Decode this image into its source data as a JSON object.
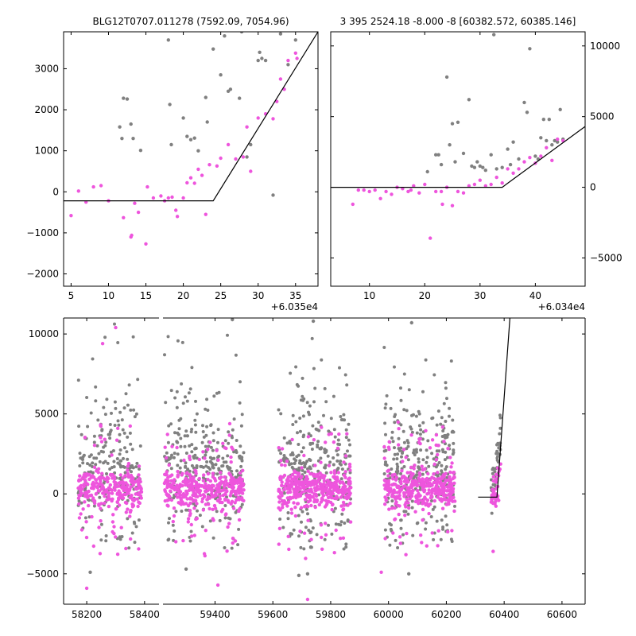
{
  "colors": {
    "gray_points": "#808080",
    "pink_points": "#ee55dd",
    "fit_line": "#000000",
    "background": "#ffffff"
  },
  "chart_data": [
    {
      "type": "scatter",
      "title": "BLG12T0707.011278 (7592.09, 7054.96)",
      "xlabel": "",
      "ylabel": "",
      "x_offset_label": "+6.035e4",
      "xlim": [
        4,
        38
      ],
      "ylim": [
        -2300,
        3900
      ],
      "xticks": [
        5,
        10,
        15,
        20,
        25,
        30,
        35
      ],
      "xtick_labels": [
        "5",
        "10",
        "15",
        "20",
        "25",
        "30",
        "35"
      ],
      "yticks": [
        -2000,
        -1000,
        0,
        1000,
        2000,
        3000
      ],
      "ytick_labels": [
        "−2000",
        "−1000",
        "0",
        "1000",
        "2000",
        "3000"
      ],
      "y_axis_side": "left",
      "grid": false,
      "series": [
        {
          "role": "gray",
          "points": [
            [
              11.5,
              1580
            ],
            [
              11.8,
              1300
            ],
            [
              12,
              2280
            ],
            [
              12.5,
              2260
            ],
            [
              13,
              1650
            ],
            [
              13.3,
              1300
            ],
            [
              14.3,
              1010
            ],
            [
              18,
              3700
            ],
            [
              18.2,
              2130
            ],
            [
              18.4,
              1150
            ],
            [
              20,
              1800
            ],
            [
              20.5,
              1350
            ],
            [
              21,
              1270
            ],
            [
              21.5,
              1310
            ],
            [
              22,
              1000
            ],
            [
              23,
              2300
            ],
            [
              23.2,
              1700
            ],
            [
              24,
              3480
            ],
            [
              25,
              2850
            ],
            [
              25.5,
              3800
            ],
            [
              26,
              2450
            ],
            [
              26.3,
              2500
            ],
            [
              27.5,
              2280
            ],
            [
              27.8,
              3900
            ],
            [
              28.5,
              850
            ],
            [
              29,
              1150
            ],
            [
              30,
              3200
            ],
            [
              30.2,
              3400
            ],
            [
              30.5,
              3250
            ],
            [
              31,
              3200
            ],
            [
              32,
              -80
            ],
            [
              33,
              3850
            ],
            [
              34,
              3100
            ],
            [
              35,
              3700
            ]
          ]
        },
        {
          "role": "pink",
          "points": [
            [
              5,
              -580
            ],
            [
              6,
              20
            ],
            [
              7,
              -250
            ],
            [
              8,
              120
            ],
            [
              9,
              150
            ],
            [
              10,
              -220
            ],
            [
              12,
              -630
            ],
            [
              13,
              -1100
            ],
            [
              13.1,
              -1060
            ],
            [
              13.5,
              -280
            ],
            [
              14,
              -500
            ],
            [
              15,
              -1270
            ],
            [
              15.2,
              120
            ],
            [
              16,
              -150
            ],
            [
              17,
              -100
            ],
            [
              17.5,
              -220
            ],
            [
              18,
              -150
            ],
            [
              18.5,
              -130
            ],
            [
              19,
              -450
            ],
            [
              19.2,
              -600
            ],
            [
              20,
              -150
            ],
            [
              20.5,
              220
            ],
            [
              21,
              340
            ],
            [
              21.5,
              210
            ],
            [
              22,
              550
            ],
            [
              22.5,
              400
            ],
            [
              23,
              -550
            ],
            [
              23.5,
              660
            ],
            [
              24.5,
              630
            ],
            [
              25,
              820
            ],
            [
              26,
              1150
            ],
            [
              27,
              800
            ],
            [
              28,
              850
            ],
            [
              28.5,
              1580
            ],
            [
              29,
              500
            ],
            [
              30,
              1800
            ],
            [
              31,
              1900
            ],
            [
              32,
              1780
            ],
            [
              32.5,
              2200
            ],
            [
              33,
              2750
            ],
            [
              33.5,
              2500
            ],
            [
              34,
              3200
            ],
            [
              35,
              3380
            ],
            [
              35.2,
              3250
            ]
          ]
        }
      ],
      "fit_line": [
        [
          4,
          -220
        ],
        [
          24,
          -220
        ],
        [
          38,
          3900
        ]
      ]
    },
    {
      "type": "scatter",
      "title": "3 395 2524.18 -8.000 -8 [60382.572, 60385.146]",
      "xlabel": "",
      "ylabel": "",
      "x_offset_label": "+6.034e4",
      "xlim": [
        3,
        49
      ],
      "ylim": [
        -7000,
        11000
      ],
      "xticks": [
        10,
        20,
        30,
        40
      ],
      "xtick_labels": [
        "10",
        "20",
        "30",
        "40"
      ],
      "yticks": [
        -5000,
        0,
        5000,
        10000
      ],
      "ytick_labels": [
        "−5000",
        "0",
        "5000",
        "10000"
      ],
      "y_axis_side": "right",
      "grid": false,
      "series": [
        {
          "role": "gray",
          "points": [
            [
              20.5,
              1100
            ],
            [
              22,
              2300
            ],
            [
              22.5,
              2300
            ],
            [
              23,
              1600
            ],
            [
              24,
              7800
            ],
            [
              24.5,
              3000
            ],
            [
              25,
              4500
            ],
            [
              25.5,
              1800
            ],
            [
              26,
              4600
            ],
            [
              27,
              2400
            ],
            [
              28,
              6200
            ],
            [
              28.5,
              1500
            ],
            [
              29,
              1400
            ],
            [
              29.5,
              1800
            ],
            [
              30,
              1500
            ],
            [
              30.5,
              1400
            ],
            [
              31,
              1200
            ],
            [
              32,
              2300
            ],
            [
              32.5,
              10800
            ],
            [
              33,
              1300
            ],
            [
              34,
              1400
            ],
            [
              35,
              2700
            ],
            [
              35.5,
              1600
            ],
            [
              36,
              3200
            ],
            [
              37,
              2000
            ],
            [
              38,
              6000
            ],
            [
              38.5,
              5300
            ],
            [
              39,
              9800
            ],
            [
              40,
              2200
            ],
            [
              40.5,
              2000
            ],
            [
              41,
              3500
            ],
            [
              41.5,
              4800
            ],
            [
              42,
              3300
            ],
            [
              42.5,
              4800
            ],
            [
              43,
              3000
            ],
            [
              43.5,
              3300
            ],
            [
              44,
              3200
            ],
            [
              44.5,
              5500
            ],
            [
              45,
              3400
            ]
          ]
        },
        {
          "role": "pink",
          "points": [
            [
              7,
              -1200
            ],
            [
              8,
              -200
            ],
            [
              9,
              -200
            ],
            [
              10,
              -300
            ],
            [
              11,
              -200
            ],
            [
              12,
              -800
            ],
            [
              13,
              -300
            ],
            [
              14,
              -500
            ],
            [
              15,
              0
            ],
            [
              16,
              -100
            ],
            [
              17,
              -300
            ],
            [
              17.5,
              -200
            ],
            [
              18,
              100
            ],
            [
              19,
              -400
            ],
            [
              20,
              200
            ],
            [
              21,
              -3600
            ],
            [
              22,
              -300
            ],
            [
              23,
              -300
            ],
            [
              23.2,
              -1200
            ],
            [
              24,
              0
            ],
            [
              25,
              -1300
            ],
            [
              26,
              -300
            ],
            [
              27,
              -400
            ],
            [
              28,
              100
            ],
            [
              29,
              200
            ],
            [
              30,
              500
            ],
            [
              31,
              100
            ],
            [
              32,
              200
            ],
            [
              33,
              700
            ],
            [
              34,
              300
            ],
            [
              35,
              1300
            ],
            [
              36,
              1000
            ],
            [
              37,
              1300
            ],
            [
              38,
              1800
            ],
            [
              39,
              2100
            ],
            [
              40,
              1700
            ],
            [
              41,
              2200
            ],
            [
              42,
              2800
            ],
            [
              43,
              1900
            ],
            [
              44,
              3400
            ],
            [
              45,
              3300
            ]
          ]
        }
      ],
      "fit_line": [
        [
          3,
          0
        ],
        [
          34,
          0
        ],
        [
          49,
          4300
        ]
      ]
    },
    {
      "type": "scatter",
      "title": "",
      "xlabel": "",
      "ylabel": "",
      "xlim": [
        58120,
        60680
      ],
      "broken_x_gap": [
        58450,
        59220
      ],
      "ylim": [
        -6900,
        11000
      ],
      "xticks": [
        58200,
        58400,
        59400,
        59600,
        59800,
        60000,
        60200,
        60400,
        60600
      ],
      "xtick_labels": [
        "58200",
        "58400",
        "59400",
        "59600",
        "59800",
        "60000",
        "60200",
        "60400",
        "60600"
      ],
      "yticks": [
        -5000,
        0,
        5000,
        10000
      ],
      "ytick_labels": [
        "−5000",
        "0",
        "5000",
        "10000"
      ],
      "y_axis_side": "left",
      "grid": false,
      "seasons": [
        {
          "x": [
            58170,
            58390
          ],
          "gray_count": 220,
          "pink_count": 280
        },
        {
          "x": [
            59225,
            59500
          ],
          "gray_count": 300,
          "pink_count": 380
        },
        {
          "x": [
            59620,
            59870
          ],
          "gray_count": 300,
          "pink_count": 380
        },
        {
          "x": [
            59985,
            60230
          ],
          "gray_count": 300,
          "pink_count": 380
        },
        {
          "x": [
            60355,
            60388
          ],
          "gray_count": 40,
          "pink_count": 35
        }
      ],
      "outliers": [
        {
          "role": "pink",
          "x": 58300,
          "y": 10400
        },
        {
          "role": "pink",
          "x": 58255,
          "y": 9400
        },
        {
          "role": "pink",
          "x": 58200,
          "y": -5900
        },
        {
          "role": "gray",
          "x": 58212,
          "y": -4900
        },
        {
          "role": "gray",
          "x": 59300,
          "y": -4700
        },
        {
          "role": "pink",
          "x": 59410,
          "y": -5700
        },
        {
          "role": "gray",
          "x": 59720,
          "y": -5000
        },
        {
          "role": "pink",
          "x": 59720,
          "y": -6600
        },
        {
          "role": "gray",
          "x": 59690,
          "y": -5100
        },
        {
          "role": "pink",
          "x": 59975,
          "y": -4900
        },
        {
          "role": "gray",
          "x": 60070,
          "y": -5000
        },
        {
          "role": "pink",
          "x": 60362,
          "y": -3600
        },
        {
          "role": "gray",
          "x": 59460,
          "y": 10900
        },
        {
          "role": "gray",
          "x": 59740,
          "y": 10800
        },
        {
          "role": "gray",
          "x": 60080,
          "y": 10700
        }
      ],
      "fit_line": [
        [
          60310,
          -200
        ],
        [
          60375,
          -200
        ],
        [
          60420,
          11000
        ]
      ]
    }
  ]
}
